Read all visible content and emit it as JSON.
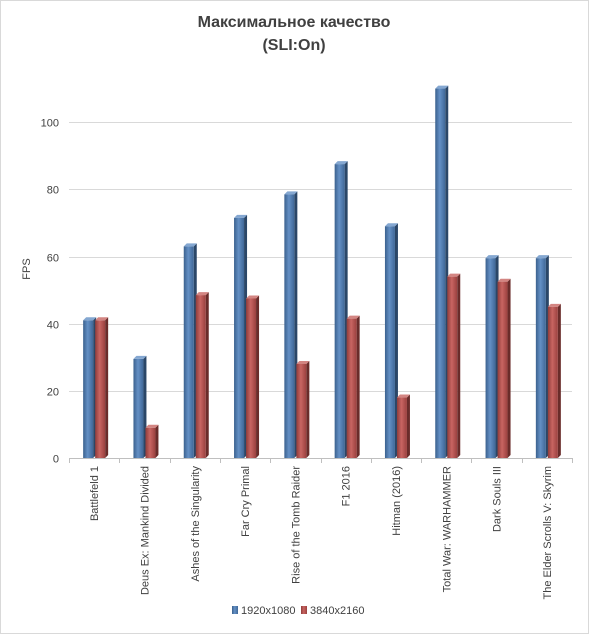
{
  "chart_data": {
    "type": "bar",
    "title": [
      "Максимальное качество",
      "(SLI:On)"
    ],
    "ylabel": "FPS",
    "xlabel": "",
    "ylim": [
      0,
      120
    ],
    "yticks": [
      0,
      20,
      40,
      60,
      80,
      100
    ],
    "grid": true,
    "legend_position": "bottom",
    "categories": [
      "Battlefeld 1",
      "Deus Ex: Mankind Divided",
      "Ashes of the Singularity",
      "Far Cry Primal",
      "Rise of the Tomb Raider",
      "F1 2016",
      "Hitman (2016)",
      "Total War: WARHAMMER",
      "Dark Souls III",
      "The Elder Scrolls V: Skyrim"
    ],
    "series": [
      {
        "name": "1920x1080",
        "color": "#4f81bd",
        "values": [
          41,
          29.5,
          63,
          71.5,
          78.5,
          87.5,
          69,
          110,
          59.5,
          59.5
        ]
      },
      {
        "name": "3840x2160",
        "color": "#c0504d",
        "values": [
          41,
          9,
          48.5,
          47.5,
          28,
          41.5,
          18,
          54,
          52.5,
          45
        ]
      }
    ]
  }
}
